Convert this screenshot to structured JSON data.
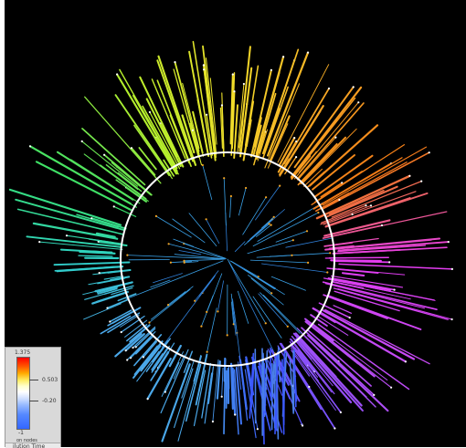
{
  "visualization": {
    "background_color": "#000000",
    "circle_color": "#ffffff",
    "layout": "radial tree",
    "sector_colors": [
      "#4aa7e8",
      "#2fd1c8",
      "#38e06a",
      "#b6ef2c",
      "#f2e12a",
      "#f7a825",
      "#f37b16",
      "#e63cf0",
      "#b84df5",
      "#3a56ff"
    ]
  },
  "legend": {
    "max_label": "1.375",
    "mid_label": "0.503",
    "low_label": "-0.20",
    "min_label": "-1",
    "caption": "on nodes",
    "tab_label": "ilution Time",
    "colors": [
      "#ff0000",
      "#ffaa00",
      "#ffffff",
      "#5588ff",
      "#3366ff"
    ]
  }
}
